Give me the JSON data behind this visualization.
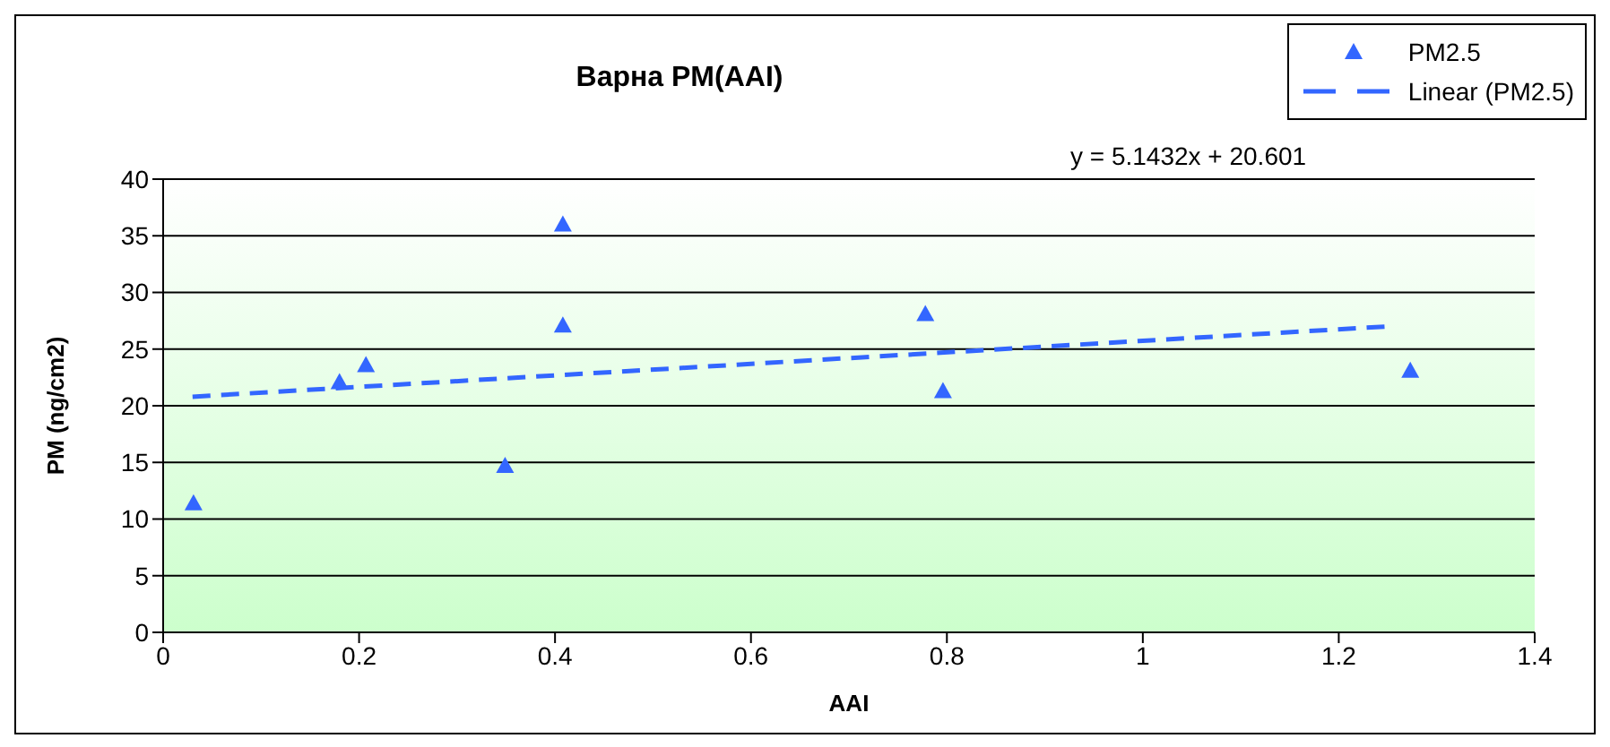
{
  "chart_data": {
    "type": "scatter",
    "title": "Варна PM(AAI)",
    "xlabel": "AAI",
    "ylabel": "PM (ng/cm2)",
    "xlim": [
      0,
      1.4
    ],
    "xticks": [
      0,
      0.2,
      0.4,
      0.6,
      0.8,
      1,
      1.2,
      1.4
    ],
    "ylim": [
      0,
      40
    ],
    "yticks": [
      0,
      5,
      10,
      15,
      20,
      25,
      30,
      35,
      40
    ],
    "grid": "y",
    "legend": "top right",
    "annotations": [
      "y = 5.1432x + 20.601"
    ],
    "series": [
      {
        "name": "PM2.5",
        "marker": "triangle",
        "color": "#3366ff",
        "x": [
          0.031,
          0.18,
          0.207,
          0.349,
          0.408,
          0.408,
          0.778,
          0.796,
          1.273
        ],
        "values": [
          11.4,
          22.1,
          23.6,
          14.7,
          36.0,
          27.1,
          28.1,
          21.3,
          23.1
        ]
      },
      {
        "name": "Linear (PM2.5)",
        "type": "line",
        "line_style": "dashed",
        "color": "#3366ff",
        "x": [
          0.03,
          1.25
        ],
        "values": [
          20.8,
          27.0
        ]
      }
    ]
  }
}
